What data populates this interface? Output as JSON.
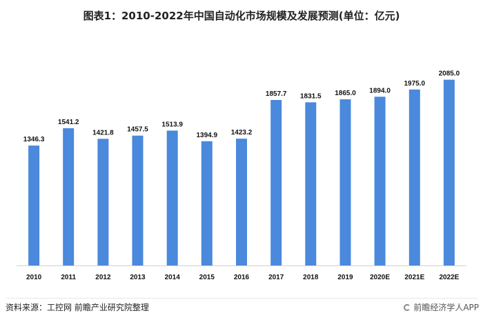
{
  "page": {
    "title": "图表1：2010-2022年中国自动化市场规模及发展预测(单位：亿元)",
    "source": "资料来源：工控网 前瞻产业研究院整理",
    "brand": "前瞻经济学人APP"
  },
  "chart_data": {
    "type": "bar",
    "title": "图表1：2010-2022年中国自动化市场规模及发展预测(单位：亿元)",
    "categories": [
      "2010",
      "2011",
      "2012",
      "2013",
      "2014",
      "2015",
      "2016",
      "2017",
      "2018",
      "2019",
      "2020E",
      "2021E",
      "2022E"
    ],
    "values": [
      1346.3,
      1541.2,
      1421.8,
      1457.5,
      1513.9,
      1394.9,
      1423.2,
      1857.7,
      1831.5,
      1865.0,
      1894.0,
      1975.0,
      2085.0
    ],
    "value_labels": [
      "1346.3",
      "1541.2",
      "1421.8",
      "1457.5",
      "1513.9",
      "1394.9",
      "1423.2",
      "1857.7",
      "1831.5",
      "1865.0",
      "1894.0",
      "1975.0",
      "2085.0"
    ],
    "ylim": [
      0,
      2500
    ],
    "xlabel": "",
    "ylabel": "",
    "grid": false,
    "legend": "none",
    "bar_color": "#4a89dc",
    "baseline_color": "#d0d0d0"
  }
}
